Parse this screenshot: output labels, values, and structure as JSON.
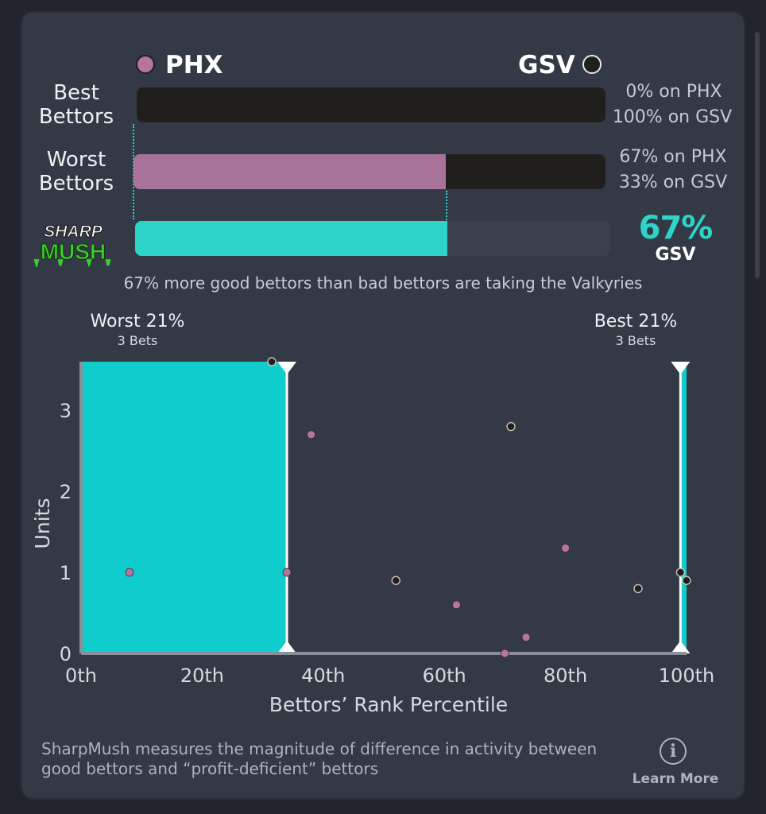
{
  "teams": {
    "left": {
      "name": "PHX",
      "color": "#b7759b"
    },
    "right": {
      "name": "GSV",
      "color": "#1f1f1f"
    }
  },
  "rows": [
    {
      "label": "Best Bettors",
      "phx_share": 0,
      "gsv_share": 100,
      "text_phx": "0% on PHX",
      "text_gsv": "100% on GSV"
    },
    {
      "label": "Worst Bettors",
      "phx_share": 67,
      "gsv_share": 33,
      "text_phx": "67% on PHX",
      "text_gsv": "33% on GSV"
    }
  ],
  "sharp": {
    "logo_top": "SHARP",
    "logo_bottom": "MUSH",
    "fill_fraction": 0.67,
    "percent": "67%",
    "team": "GSV",
    "accent": "#2dd5c8"
  },
  "summary": "67% more good bettors than bad bettors are taking the Valkyries",
  "ranges": {
    "worst": {
      "title": "Worst 21%",
      "sub": "3 Bets"
    },
    "best": {
      "title": "Best 21%",
      "sub": "3 Bets"
    }
  },
  "chart_data": {
    "type": "scatter",
    "xlabel": "Bettors’ Rank Percentile",
    "ylabel": "Units",
    "x_ticks": [
      "0th",
      "20th",
      "40th",
      "60th",
      "80th",
      "100th"
    ],
    "x_tick_values": [
      0,
      20,
      40,
      60,
      80,
      100
    ],
    "y_ticks": [
      "0",
      "1",
      "2",
      "3"
    ],
    "y_tick_values": [
      0,
      1,
      2,
      3
    ],
    "xlim": [
      0,
      100
    ],
    "ylim": [
      0,
      3.6
    ],
    "highlight_ranges": [
      [
        0,
        34
      ],
      [
        99,
        100
      ]
    ],
    "series": [
      {
        "name": "PHX",
        "color": "#b7759b",
        "points": [
          [
            8,
            1.0
          ],
          [
            34,
            1.0
          ],
          [
            38,
            2.7
          ],
          [
            62,
            0.6
          ],
          [
            70,
            0.0
          ],
          [
            73.5,
            0.2
          ],
          [
            80,
            1.3
          ]
        ]
      },
      {
        "name": "GSV",
        "color": "#1f1f1f",
        "points": [
          [
            31.5,
            3.6
          ],
          [
            52,
            0.9
          ],
          [
            71,
            2.8
          ],
          [
            92,
            0.8
          ],
          [
            99,
            1.0
          ],
          [
            100,
            0.9
          ]
        ]
      }
    ]
  },
  "footer": {
    "text": "SharpMush measures the magnitude of difference in activity between good bettors and “profit-deficient” bettors",
    "info_glyph": "i",
    "learn_more": "Learn More"
  }
}
